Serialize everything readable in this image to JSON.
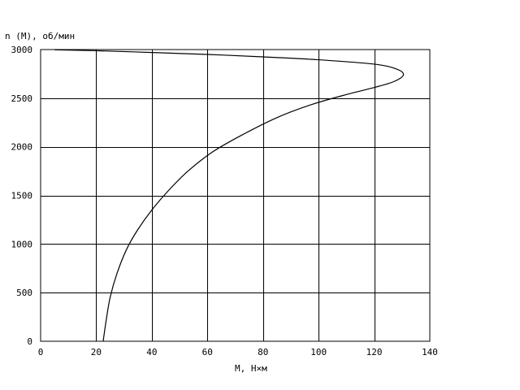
{
  "chart_data": {
    "type": "line",
    "ylabel": "n (M), об/мин",
    "xlabel": "M, Н×м",
    "xlim": [
      0,
      140
    ],
    "ylim": [
      0,
      3000
    ],
    "xticks": [
      0,
      20,
      40,
      60,
      80,
      100,
      120,
      140
    ],
    "yticks": [
      0,
      500,
      1000,
      1500,
      2000,
      2500,
      3000
    ],
    "grid": true,
    "series": [
      {
        "color": "#000000",
        "points": [
          {
            "M": 22.5,
            "n": 0
          },
          {
            "M": 23.5,
            "n": 200
          },
          {
            "M": 25,
            "n": 450
          },
          {
            "M": 27.5,
            "n": 700
          },
          {
            "M": 31,
            "n": 950
          },
          {
            "M": 35,
            "n": 1150
          },
          {
            "M": 40,
            "n": 1350
          },
          {
            "M": 46,
            "n": 1550
          },
          {
            "M": 53,
            "n": 1750
          },
          {
            "M": 62,
            "n": 1950
          },
          {
            "M": 73,
            "n": 2130
          },
          {
            "M": 85,
            "n": 2300
          },
          {
            "M": 97,
            "n": 2430
          },
          {
            "M": 109,
            "n": 2530
          },
          {
            "M": 120,
            "n": 2610
          },
          {
            "M": 127,
            "n": 2670
          },
          {
            "M": 130.5,
            "n": 2740
          },
          {
            "M": 128,
            "n": 2800
          },
          {
            "M": 120,
            "n": 2850
          },
          {
            "M": 100,
            "n": 2895
          },
          {
            "M": 80,
            "n": 2925
          },
          {
            "M": 60,
            "n": 2950
          },
          {
            "M": 40,
            "n": 2970
          },
          {
            "M": 20,
            "n": 2988
          },
          {
            "M": 5,
            "n": 2998
          }
        ]
      }
    ]
  }
}
